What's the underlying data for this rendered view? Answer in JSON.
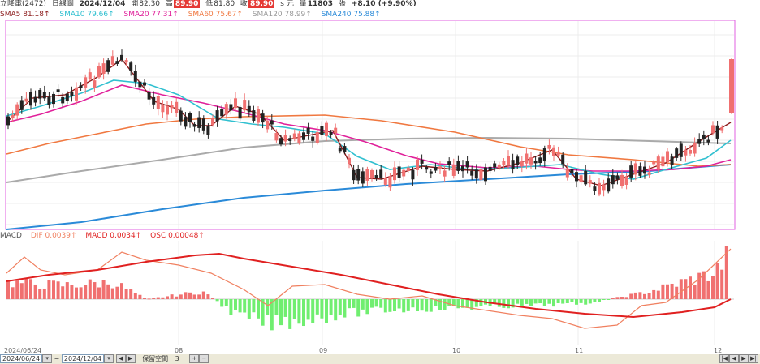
{
  "header": {
    "stock": "立隆電(2472)",
    "period": "日線圖",
    "date": "2024/12/04",
    "open_label": "開",
    "open": "82.30",
    "high_label": "高",
    "high": "89.90",
    "low_label": "低",
    "low": "81.80",
    "close_label": "收",
    "close": "89.90",
    "unit": "s 元",
    "volume_label": "量",
    "volume": "11803",
    "volume_unit": "張",
    "change": "+8.10 (+9.90%)"
  },
  "ma_legend": [
    {
      "label": "SMA5 81.18↑",
      "color": "#8b1a1a"
    },
    {
      "label": "SMA10 79.66↑",
      "color": "#30c0d0"
    },
    {
      "label": "SMA20 77.31↑",
      "color": "#e0209a"
    },
    {
      "label": "SMA60 75.67↑",
      "color": "#f07840"
    },
    {
      "label": "SMA120 78.99↑",
      "color": "#999999"
    },
    {
      "label": "SMA240 75.88↑",
      "color": "#2a8ad8"
    }
  ],
  "macd_legend": [
    {
      "label": "MACD",
      "color": "#555555"
    },
    {
      "label": "DIF 0.0039↑",
      "color": "#f08060"
    },
    {
      "label": "MACD 0.0034↑",
      "color": "#e02020"
    },
    {
      "label": "OSC 0.00048↑",
      "color": "#e02020"
    }
  ],
  "x_axis": {
    "start_label": "2024/06/24",
    "months": [
      "08",
      "09",
      "10",
      "11",
      "12"
    ]
  },
  "footer": {
    "from_date": "2024/06/24",
    "to_date": "2024/12/04",
    "keep_label": "保留空間",
    "keep_value": "3"
  },
  "colors": {
    "up": "#f07070",
    "down": "#222222",
    "osc_up": "#f07070",
    "osc_down": "#70ee70",
    "frame": "#e060e0"
  }
}
